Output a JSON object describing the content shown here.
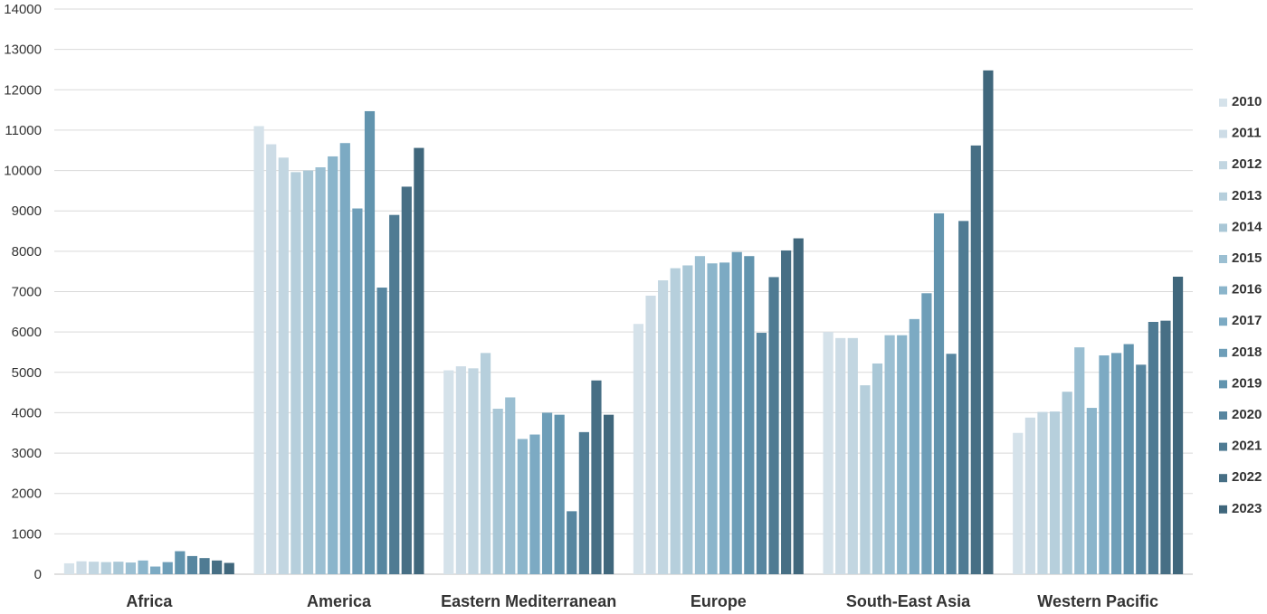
{
  "chart_data": {
    "type": "bar",
    "title": "",
    "xlabel": "",
    "ylabel": "",
    "ylim": [
      0,
      14000
    ],
    "yticks": [
      0,
      1000,
      2000,
      3000,
      4000,
      5000,
      6000,
      7000,
      8000,
      9000,
      10000,
      11000,
      12000,
      13000,
      14000
    ],
    "grid": true,
    "legend_position": "right",
    "categories": [
      "Africa",
      "America",
      "Eastern Mediterranean",
      "Europe",
      "South-East Asia",
      "Western Pacific"
    ],
    "series": [
      {
        "name": "2010",
        "color": "#d5e2ea",
        "values": [
          270,
          11100,
          5050,
          6200,
          6000,
          3500
        ]
      },
      {
        "name": "2011",
        "color": "#cddce6",
        "values": [
          320,
          10650,
          5150,
          6900,
          5850,
          3880
        ]
      },
      {
        "name": "2012",
        "color": "#c2d6e1",
        "values": [
          310,
          10320,
          5100,
          7280,
          5850,
          4020
        ]
      },
      {
        "name": "2013",
        "color": "#b6cfdc",
        "values": [
          300,
          9960,
          5480,
          7580,
          4680,
          4030
        ]
      },
      {
        "name": "2014",
        "color": "#a9c7d6",
        "values": [
          310,
          10000,
          4100,
          7650,
          5220,
          4520
        ]
      },
      {
        "name": "2015",
        "color": "#9bbfd2",
        "values": [
          290,
          10080,
          4380,
          7880,
          5920,
          5620
        ]
      },
      {
        "name": "2016",
        "color": "#8bb5cb",
        "values": [
          340,
          10350,
          3350,
          7700,
          5920,
          4120
        ]
      },
      {
        "name": "2017",
        "color": "#7caac3",
        "values": [
          190,
          10680,
          3460,
          7720,
          6320,
          5420
        ]
      },
      {
        "name": "2018",
        "color": "#6e9eb8",
        "values": [
          300,
          9060,
          4000,
          7980,
          6960,
          5480
        ]
      },
      {
        "name": "2019",
        "color": "#6294ae",
        "values": [
          570,
          11470,
          3950,
          7880,
          8940,
          5700
        ]
      },
      {
        "name": "2020",
        "color": "#5786a0",
        "values": [
          450,
          7100,
          1560,
          5980,
          5460,
          5190
        ]
      },
      {
        "name": "2021",
        "color": "#4f7b93",
        "values": [
          400,
          8900,
          3520,
          7360,
          8750,
          6250
        ]
      },
      {
        "name": "2022",
        "color": "#476f85",
        "values": [
          340,
          9600,
          4800,
          8020,
          10620,
          6280
        ]
      },
      {
        "name": "2023",
        "color": "#40677c",
        "values": [
          280,
          10560,
          3950,
          8320,
          12480,
          7370
        ]
      }
    ]
  }
}
